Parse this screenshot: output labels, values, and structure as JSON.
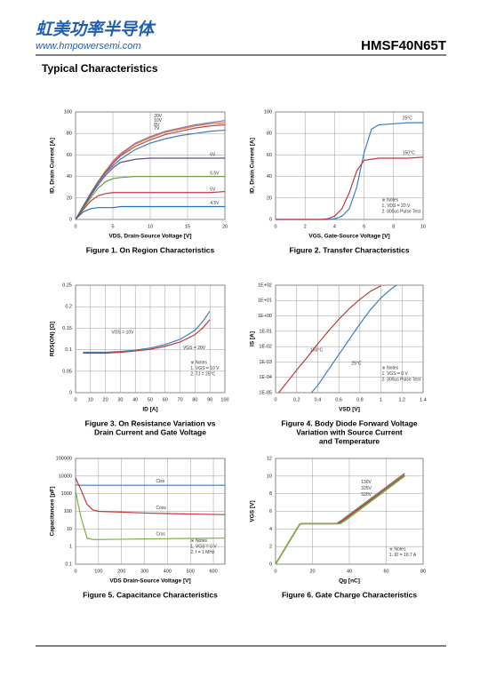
{
  "header": {
    "logo": "虹美功率半导体",
    "url": "www.hmpowersemi.com",
    "part": "HMSF40N65T",
    "section": "Typical Characteristics"
  },
  "chart_data": [
    {
      "type": "line",
      "title": [
        "Figure 1. On Region Characteristics"
      ],
      "xlabel": "VDS, Drain-Source Voltage  [V]",
      "ylabel": "ID, Drain Current  [A]",
      "xlim": [
        0,
        20
      ],
      "xticks": [
        0,
        5,
        10,
        15,
        20
      ],
      "ylim": [
        0,
        100
      ],
      "yticks": [
        0,
        20,
        40,
        60,
        80,
        100
      ],
      "grid": true,
      "series": [
        {
          "name": "20V",
          "color": "#8b6fb0",
          "x": [
            0,
            1,
            2,
            3,
            4,
            5,
            6,
            8,
            10,
            12,
            14,
            16,
            18,
            20
          ],
          "values": [
            0,
            12,
            24,
            35,
            45,
            54,
            61,
            71,
            77,
            82,
            85,
            88,
            90,
            92
          ]
        },
        {
          "name": "10V",
          "color": "#e08040",
          "x": [
            0,
            1,
            2,
            3,
            4,
            5,
            6,
            8,
            10,
            12,
            14,
            16,
            18,
            20
          ],
          "values": [
            0,
            12,
            24,
            35,
            45,
            53,
            60,
            70,
            76,
            81,
            84,
            87,
            89,
            90
          ]
        },
        {
          "name": "8V",
          "color": "#c04848",
          "x": [
            0,
            1,
            2,
            3,
            4,
            5,
            6,
            8,
            10,
            12,
            14,
            16,
            18,
            20
          ],
          "values": [
            0,
            12,
            24,
            35,
            44,
            52,
            59,
            68,
            74,
            79,
            82,
            85,
            87,
            88
          ]
        },
        {
          "name": "7V",
          "color": "#3a7fb8",
          "x": [
            0,
            1,
            2,
            3,
            4,
            5,
            6,
            8,
            10,
            12,
            14,
            16,
            18,
            20
          ],
          "values": [
            0,
            12,
            23,
            34,
            43,
            50,
            56,
            65,
            71,
            75,
            78,
            80,
            82,
            83
          ]
        },
        {
          "name": "6V",
          "color": "#6a4a90",
          "x": [
            0,
            1,
            2,
            3,
            4,
            5,
            6,
            8,
            10,
            12,
            14,
            16,
            18,
            20
          ],
          "values": [
            0,
            11,
            22,
            32,
            41,
            48,
            53,
            56,
            57,
            57,
            57,
            57,
            57,
            57
          ]
        },
        {
          "name": "5.5V",
          "color": "#6aa040",
          "x": [
            0,
            1,
            2,
            3,
            4,
            5,
            6,
            8,
            10,
            12,
            14,
            16,
            18,
            20
          ],
          "values": [
            0,
            10,
            20,
            29,
            35,
            38,
            39,
            40,
            40,
            40,
            40,
            40,
            40,
            40
          ]
        },
        {
          "name": "5V",
          "color": "#c03838",
          "x": [
            0,
            1,
            2,
            3,
            4,
            5,
            6,
            8,
            10,
            12,
            14,
            16,
            18,
            20
          ],
          "values": [
            0,
            9,
            17,
            22,
            24,
            25,
            25,
            25,
            25,
            25,
            25,
            25,
            25,
            26
          ]
        },
        {
          "name": "4.5V",
          "color": "#2a6fb0",
          "x": [
            0,
            1,
            2,
            3,
            4,
            5,
            6,
            8,
            10,
            12,
            14,
            16,
            18,
            20
          ],
          "values": [
            0,
            7,
            10,
            11,
            11,
            11,
            12,
            12,
            12,
            12,
            12,
            12,
            12,
            12
          ]
        }
      ]
    },
    {
      "type": "line",
      "title": [
        "Figure 2. Transfer Characteristics"
      ],
      "xlabel": "VGS, Gate-Source Voltage [V]",
      "ylabel": "ID, Drain Current [A]",
      "xlim": [
        0,
        10
      ],
      "xticks": [
        0,
        2,
        4,
        6,
        8,
        10
      ],
      "ylim": [
        0,
        100
      ],
      "yticks": [
        0,
        20,
        40,
        60,
        80,
        100
      ],
      "grid": true,
      "notes": [
        "※ Notes",
        "1. VDS = 20 V",
        "2. 300us Pulse Test"
      ],
      "series": [
        {
          "name": "25°C",
          "color": "#3a7fc0",
          "x": [
            0,
            1,
            2,
            3,
            3.5,
            4,
            4.5,
            5,
            5.5,
            6,
            6.5,
            7,
            8,
            9,
            10
          ],
          "values": [
            0,
            0,
            0,
            0,
            0,
            0.5,
            3,
            10,
            30,
            62,
            84,
            88,
            89,
            90,
            90
          ]
        },
        {
          "name": "150°C",
          "color": "#c03838",
          "x": [
            0,
            1,
            2,
            3,
            3.5,
            4,
            4.5,
            5,
            5.5,
            6,
            6.5,
            7,
            8,
            9,
            10
          ],
          "values": [
            0,
            0,
            0,
            0,
            0.5,
            3,
            10,
            25,
            45,
            55,
            56,
            57,
            57,
            57,
            58
          ]
        }
      ]
    },
    {
      "type": "line",
      "title": [
        "Figure 3. On Resistance Variation vs",
        "Drain Current and Gate Voltage"
      ],
      "xlabel": "ID  [A]",
      "ylabel": "RDS(ON) [Ω]",
      "xlim": [
        0,
        100
      ],
      "xticks": [
        0,
        10,
        20,
        30,
        40,
        50,
        60,
        70,
        80,
        90,
        100
      ],
      "ylim": [
        0,
        0.25
      ],
      "yticks": [
        0,
        0.05,
        0.1,
        0.15,
        0.2,
        0.25
      ],
      "grid": true,
      "notes": [
        "※ Notes",
        "1. VGS = 10 V",
        "2. TJ = 25°C"
      ],
      "series": [
        {
          "name": "VGS = 10V",
          "color": "#3a7fc0",
          "x": [
            5,
            10,
            20,
            30,
            40,
            50,
            60,
            70,
            80,
            85,
            90
          ],
          "values": [
            0.094,
            0.094,
            0.094,
            0.096,
            0.099,
            0.104,
            0.112,
            0.124,
            0.145,
            0.165,
            0.19
          ]
        },
        {
          "name": "VGS = 20V",
          "color": "#c03838",
          "x": [
            5,
            10,
            20,
            30,
            40,
            50,
            60,
            70,
            80,
            85,
            90
          ],
          "values": [
            0.092,
            0.092,
            0.092,
            0.094,
            0.097,
            0.101,
            0.108,
            0.118,
            0.135,
            0.15,
            0.17
          ]
        }
      ]
    },
    {
      "type": "line",
      "title": [
        "Figure 4. Body Diode Forward Voltage",
        "Variation with Source Current",
        "and Temperature"
      ],
      "xlabel": "VSD [V]",
      "ylabel": "IS [A]",
      "xlim": [
        0,
        1.4
      ],
      "xticks": [
        0,
        0.2,
        0.4,
        0.6,
        0.8,
        1,
        1.2,
        1.4
      ],
      "ylim": [
        1e-05,
        100
      ],
      "ylog": true,
      "grid": true,
      "yticks": [
        {
          "value": 1e-05,
          "label": "1E-05"
        },
        {
          "value": 0.0001,
          "label": "1E-04"
        },
        {
          "value": 0.001,
          "label": "1E-03"
        },
        {
          "value": 0.01,
          "label": "1E-02"
        },
        {
          "value": 0.1,
          "label": "1E-01"
        },
        {
          "value": 1,
          "label": "1E+00"
        },
        {
          "value": 10,
          "label": "1E+01"
        },
        {
          "value": 100,
          "label": "1E+02"
        }
      ],
      "notes": [
        "※ Notes",
        "1. VGS = 0 V",
        "2. 300us Pulse Test"
      ],
      "series": [
        {
          "name": "150°C",
          "color": "#c03838",
          "x": [
            0.03,
            0.1,
            0.2,
            0.3,
            0.4,
            0.5,
            0.6,
            0.7,
            0.8,
            0.9,
            1.0
          ],
          "values": [
            1e-05,
            4e-05,
            0.0003,
            0.002,
            0.015,
            0.1,
            0.6,
            3,
            12,
            40,
            90
          ]
        },
        {
          "name": "25°C",
          "color": "#3a7fc0",
          "x": [
            0.34,
            0.4,
            0.5,
            0.6,
            0.7,
            0.8,
            0.9,
            1.0,
            1.1,
            1.15
          ],
          "values": [
            1e-05,
            3e-05,
            0.0003,
            0.003,
            0.03,
            0.3,
            2.5,
            15,
            60,
            100
          ]
        }
      ]
    },
    {
      "type": "line",
      "title": [
        "Figure 5. Capacitance Characteristics"
      ],
      "xlabel": "VDS Drain-Source Voltage [V]",
      "ylabel": "Capacitances  [pF]",
      "xlim": [
        0,
        650
      ],
      "xticks": [
        0,
        100,
        200,
        300,
        400,
        500,
        600
      ],
      "ylim": [
        0.1,
        100000
      ],
      "ylog": true,
      "yticks": [
        0.1,
        1,
        10,
        100,
        1000,
        10000,
        100000
      ],
      "grid": true,
      "notes": [
        "※ Notes",
        "1. VGS = 0 V",
        "2. f = 1 MHz"
      ],
      "series": [
        {
          "name": "Ciss",
          "color": "#3a7fc0",
          "x": [
            0,
            10,
            25,
            50,
            75,
            100,
            200,
            300,
            400,
            500,
            650
          ],
          "values": [
            3200,
            3100,
            3000,
            3000,
            3000,
            3000,
            3000,
            3000,
            3000,
            3000,
            3000
          ]
        },
        {
          "name": "Coss",
          "color": "#c03838",
          "x": [
            0,
            10,
            25,
            50,
            75,
            100,
            200,
            300,
            400,
            500,
            650
          ],
          "values": [
            8000,
            4000,
            1500,
            250,
            120,
            100,
            90,
            80,
            75,
            70,
            65
          ]
        },
        {
          "name": "Crss",
          "color": "#7ab040",
          "x": [
            0,
            10,
            25,
            50,
            75,
            100,
            200,
            300,
            400,
            500,
            650
          ],
          "values": [
            1500,
            300,
            40,
            3,
            2.5,
            2.5,
            2.6,
            2.7,
            2.8,
            2.9,
            3
          ]
        }
      ]
    },
    {
      "type": "line",
      "title": [
        "Figure 6. Gate Charge Characteristics"
      ],
      "xlabel": "Qg [nC]",
      "ylabel": "VGS [V]",
      "xlim": [
        0,
        80
      ],
      "xticks": [
        0,
        20,
        40,
        60,
        80
      ],
      "ylim": [
        0,
        12
      ],
      "yticks": [
        0,
        2,
        4,
        6,
        8,
        10,
        12
      ],
      "grid": true,
      "notes": [
        "※ Notes",
        "1. ID = 16.7 A"
      ],
      "series": [
        {
          "name": "130V",
          "color": "#808080",
          "x": [
            0,
            13,
            14,
            33,
            36,
            70
          ],
          "values": [
            0,
            4.5,
            4.6,
            4.6,
            5,
            10.3
          ]
        },
        {
          "name": "325V",
          "color": "#c03838",
          "x": [
            0,
            13,
            14,
            34,
            37,
            70
          ],
          "values": [
            0,
            4.5,
            4.6,
            4.6,
            5,
            10.1
          ]
        },
        {
          "name": "520V",
          "color": "#7ab040",
          "x": [
            0,
            13,
            14,
            35,
            38,
            70
          ],
          "values": [
            0,
            4.5,
            4.6,
            4.6,
            5,
            10.0
          ]
        }
      ]
    }
  ]
}
